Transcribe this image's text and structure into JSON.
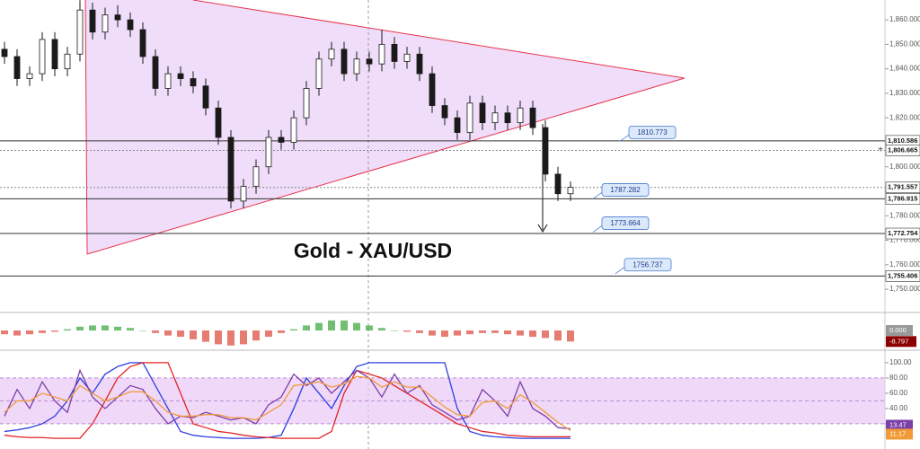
{
  "chart_data": [
    {
      "type": "candlestick",
      "title": "Gold - XAU/USD",
      "color": "#1a1a1a",
      "open": [
        1848,
        1845,
        1836,
        1838,
        1852,
        1840,
        1846,
        1864,
        1855,
        1862,
        1860,
        1856,
        1845,
        1832,
        1838,
        1836,
        1833,
        1824,
        1812,
        1786,
        1792,
        1800,
        1812,
        1810,
        1820,
        1832,
        1844,
        1848,
        1838,
        1844,
        1842,
        1850,
        1843,
        1846,
        1838,
        1825,
        1820,
        1814,
        1826,
        1818,
        1822,
        1818,
        1824,
        1816,
        1797,
        1789
      ],
      "high": [
        1851,
        1848,
        1841,
        1855,
        1855,
        1849,
        1868,
        1867,
        1865,
        1866,
        1863,
        1859,
        1848,
        1841,
        1841,
        1839,
        1836,
        1827,
        1815,
        1795,
        1803,
        1815,
        1815,
        1823,
        1835,
        1847,
        1851,
        1851,
        1847,
        1847,
        1856,
        1853,
        1849,
        1849,
        1841,
        1828,
        1823,
        1829,
        1829,
        1825,
        1825,
        1827,
        1827,
        1819,
        1800,
        1794
      ],
      "low": [
        1842,
        1833,
        1833,
        1835,
        1837,
        1837,
        1843,
        1852,
        1852,
        1857,
        1853,
        1842,
        1829,
        1829,
        1833,
        1830,
        1821,
        1809,
        1783,
        1783,
        1789,
        1797,
        1807,
        1807,
        1817,
        1829,
        1841,
        1835,
        1835,
        1839,
        1839,
        1840,
        1840,
        1835,
        1822,
        1817,
        1811,
        1811,
        1815,
        1815,
        1815,
        1815,
        1813,
        1794,
        1786,
        1786
      ],
      "close": [
        1845,
        1836,
        1838,
        1852,
        1840,
        1846,
        1864,
        1855,
        1862,
        1860,
        1856,
        1845,
        1832,
        1838,
        1836,
        1833,
        1824,
        1812,
        1786,
        1792,
        1800,
        1812,
        1810,
        1820,
        1832,
        1844,
        1848,
        1838,
        1844,
        1842,
        1850,
        1843,
        1846,
        1838,
        1825,
        1820,
        1814,
        1826,
        1818,
        1822,
        1818,
        1824,
        1816,
        1797,
        1789,
        1791.6
      ],
      "ylim": [
        1741.6,
        1868.1
      ],
      "yticks": [
        {
          "value": 1750,
          "label": "1,750.000"
        },
        {
          "value": 1760,
          "label": "1,760.000"
        },
        {
          "value": 1770,
          "label": "1,770.000"
        },
        {
          "value": 1780,
          "label": "1,780.000"
        },
        {
          "value": 1790,
          "label": "1,790.000"
        },
        {
          "value": 1800,
          "label": "1,800.000"
        },
        {
          "value": 1810,
          "label": "1,810.000"
        },
        {
          "value": 1820,
          "label": "1,820.000"
        },
        {
          "value": 1830,
          "label": "1,830.000"
        },
        {
          "value": 1840,
          "label": "1,840.000"
        },
        {
          "value": 1850,
          "label": "1,850.000"
        },
        {
          "value": 1860,
          "label": "1,860.000"
        }
      ],
      "levels": [
        {
          "value": 1810.586,
          "label": "1,810.586",
          "style": "solid"
        },
        {
          "value": 1806.665,
          "label": "1,806.665",
          "style": "dotted"
        },
        {
          "value": 1791.557,
          "label": "1,791.557",
          "style": "dotted"
        },
        {
          "value": 1786.915,
          "label": "1,786.915",
          "style": "solid"
        },
        {
          "value": 1772.754,
          "label": "1,772.754",
          "style": "solid"
        },
        {
          "value": 1755.406,
          "label": "1,755.406",
          "style": "solid"
        }
      ],
      "callouts": [
        1810.773,
        1787.282,
        1773.664,
        1756.737
      ]
    },
    {
      "type": "bar",
      "positive_color": "#4caf50",
      "negative_color": "#e05a4f",
      "values": [
        -3,
        -4,
        -3,
        -2,
        -1,
        1,
        3,
        4,
        4,
        3,
        2,
        0,
        -2,
        -4,
        -5,
        -7,
        -9,
        -11,
        -12,
        -11,
        -8,
        -5,
        -2,
        1,
        4,
        6,
        8,
        8,
        6,
        4,
        2,
        0,
        -1,
        -2,
        -4,
        -5,
        -4,
        -3,
        -2,
        -2,
        -3,
        -4,
        -5,
        -6,
        -8,
        -8.797
      ],
      "ylim": [
        -14.3,
        12.9
      ],
      "yticks": [
        {
          "value": 0,
          "label": "0.000"
        }
      ]
    },
    {
      "type": "line",
      "ylim": [
        -13,
        114
      ],
      "yticks": [
        {
          "value": 100,
          "label": "100.00"
        },
        {
          "value": 80,
          "label": "80.00"
        },
        {
          "value": 60,
          "label": "60.00"
        },
        {
          "value": 40,
          "label": "40.00"
        },
        {
          "value": 20,
          "label": "20.00"
        }
      ],
      "band": [
        20,
        80
      ],
      "band_color": "#e9c8f5",
      "midline": 50,
      "series": [
        {
          "color": "#2b3fe0",
          "values": [
            10,
            12,
            15,
            20,
            30,
            50,
            80,
            60,
            85,
            95,
            100,
            100,
            70,
            40,
            10,
            5,
            3,
            2,
            1,
            1,
            1,
            2,
            5,
            40,
            80,
            60,
            40,
            70,
            95,
            100,
            100,
            100,
            100,
            100,
            100,
            100,
            40,
            10,
            5,
            3,
            2,
            1,
            1,
            1,
            1,
            1
          ]
        },
        {
          "color": "#e32222",
          "values": [
            5,
            3,
            2,
            2,
            1,
            1,
            1,
            20,
            50,
            80,
            95,
            100,
            100,
            100,
            60,
            20,
            15,
            10,
            8,
            5,
            3,
            2,
            1,
            1,
            1,
            1,
            10,
            60,
            90,
            85,
            80,
            70,
            60,
            50,
            40,
            30,
            20,
            15,
            10,
            8,
            5,
            4,
            3,
            3,
            3,
            3
          ]
        },
        {
          "color": "#7b3fa8",
          "badge": true,
          "values": [
            30,
            65,
            40,
            75,
            50,
            35,
            90,
            55,
            40,
            55,
            70,
            65,
            40,
            20,
            30,
            28,
            35,
            30,
            25,
            28,
            20,
            45,
            55,
            85,
            70,
            80,
            60,
            75,
            90,
            80,
            55,
            85,
            60,
            70,
            45,
            35,
            25,
            30,
            65,
            50,
            30,
            75,
            40,
            30,
            15,
            13.47
          ]
        },
        {
          "color": "#f29a38",
          "badge": true,
          "values": [
            35,
            50,
            50,
            60,
            55,
            50,
            70,
            60,
            50,
            55,
            62,
            62,
            50,
            35,
            30,
            30,
            32,
            32,
            28,
            28,
            25,
            35,
            45,
            70,
            72,
            75,
            68,
            72,
            82,
            80,
            68,
            75,
            68,
            68,
            55,
            42,
            32,
            30,
            48,
            50,
            40,
            58,
            48,
            35,
            22,
            11.17
          ]
        }
      ]
    }
  ]
}
